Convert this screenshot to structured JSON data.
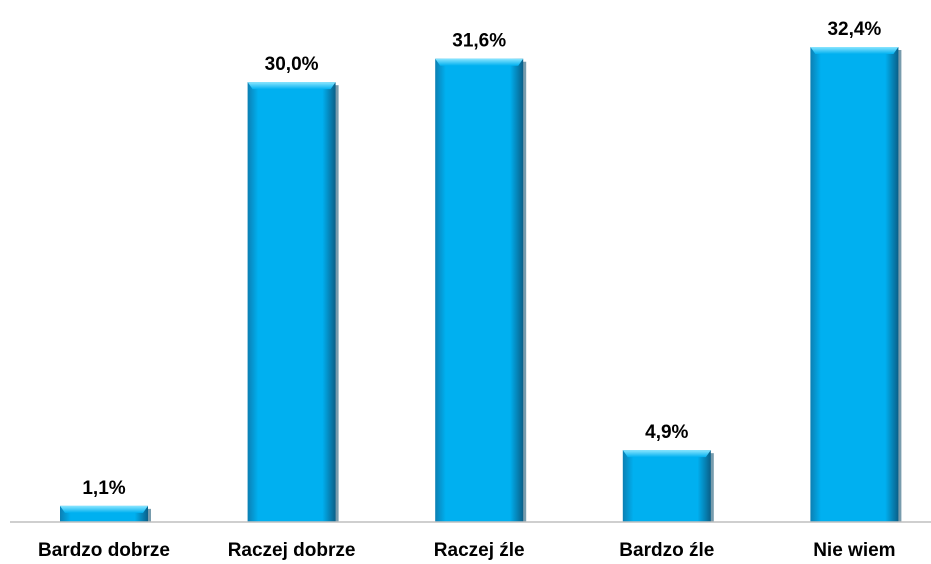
{
  "chart_data": {
    "type": "bar",
    "categories": [
      "Bardzo dobrze",
      "Raczej dobrze",
      "Raczej źle",
      "Bardzo źle",
      "Nie wiem"
    ],
    "values": [
      1.1,
      30.0,
      31.6,
      4.9,
      32.4
    ],
    "value_labels": [
      "1,1%",
      "30,0%",
      "31,6%",
      "4,9%",
      "32,4%"
    ],
    "title": "",
    "xlabel": "",
    "ylabel": "",
    "ylim": [
      0,
      32.4
    ],
    "grid": false,
    "legend": "none",
    "colors": {
      "bar": "#00b0f0",
      "bar_highlight": "#6fdcff",
      "bar_shadow": "#0a4a6a",
      "axis": "#bfbfbf"
    }
  }
}
